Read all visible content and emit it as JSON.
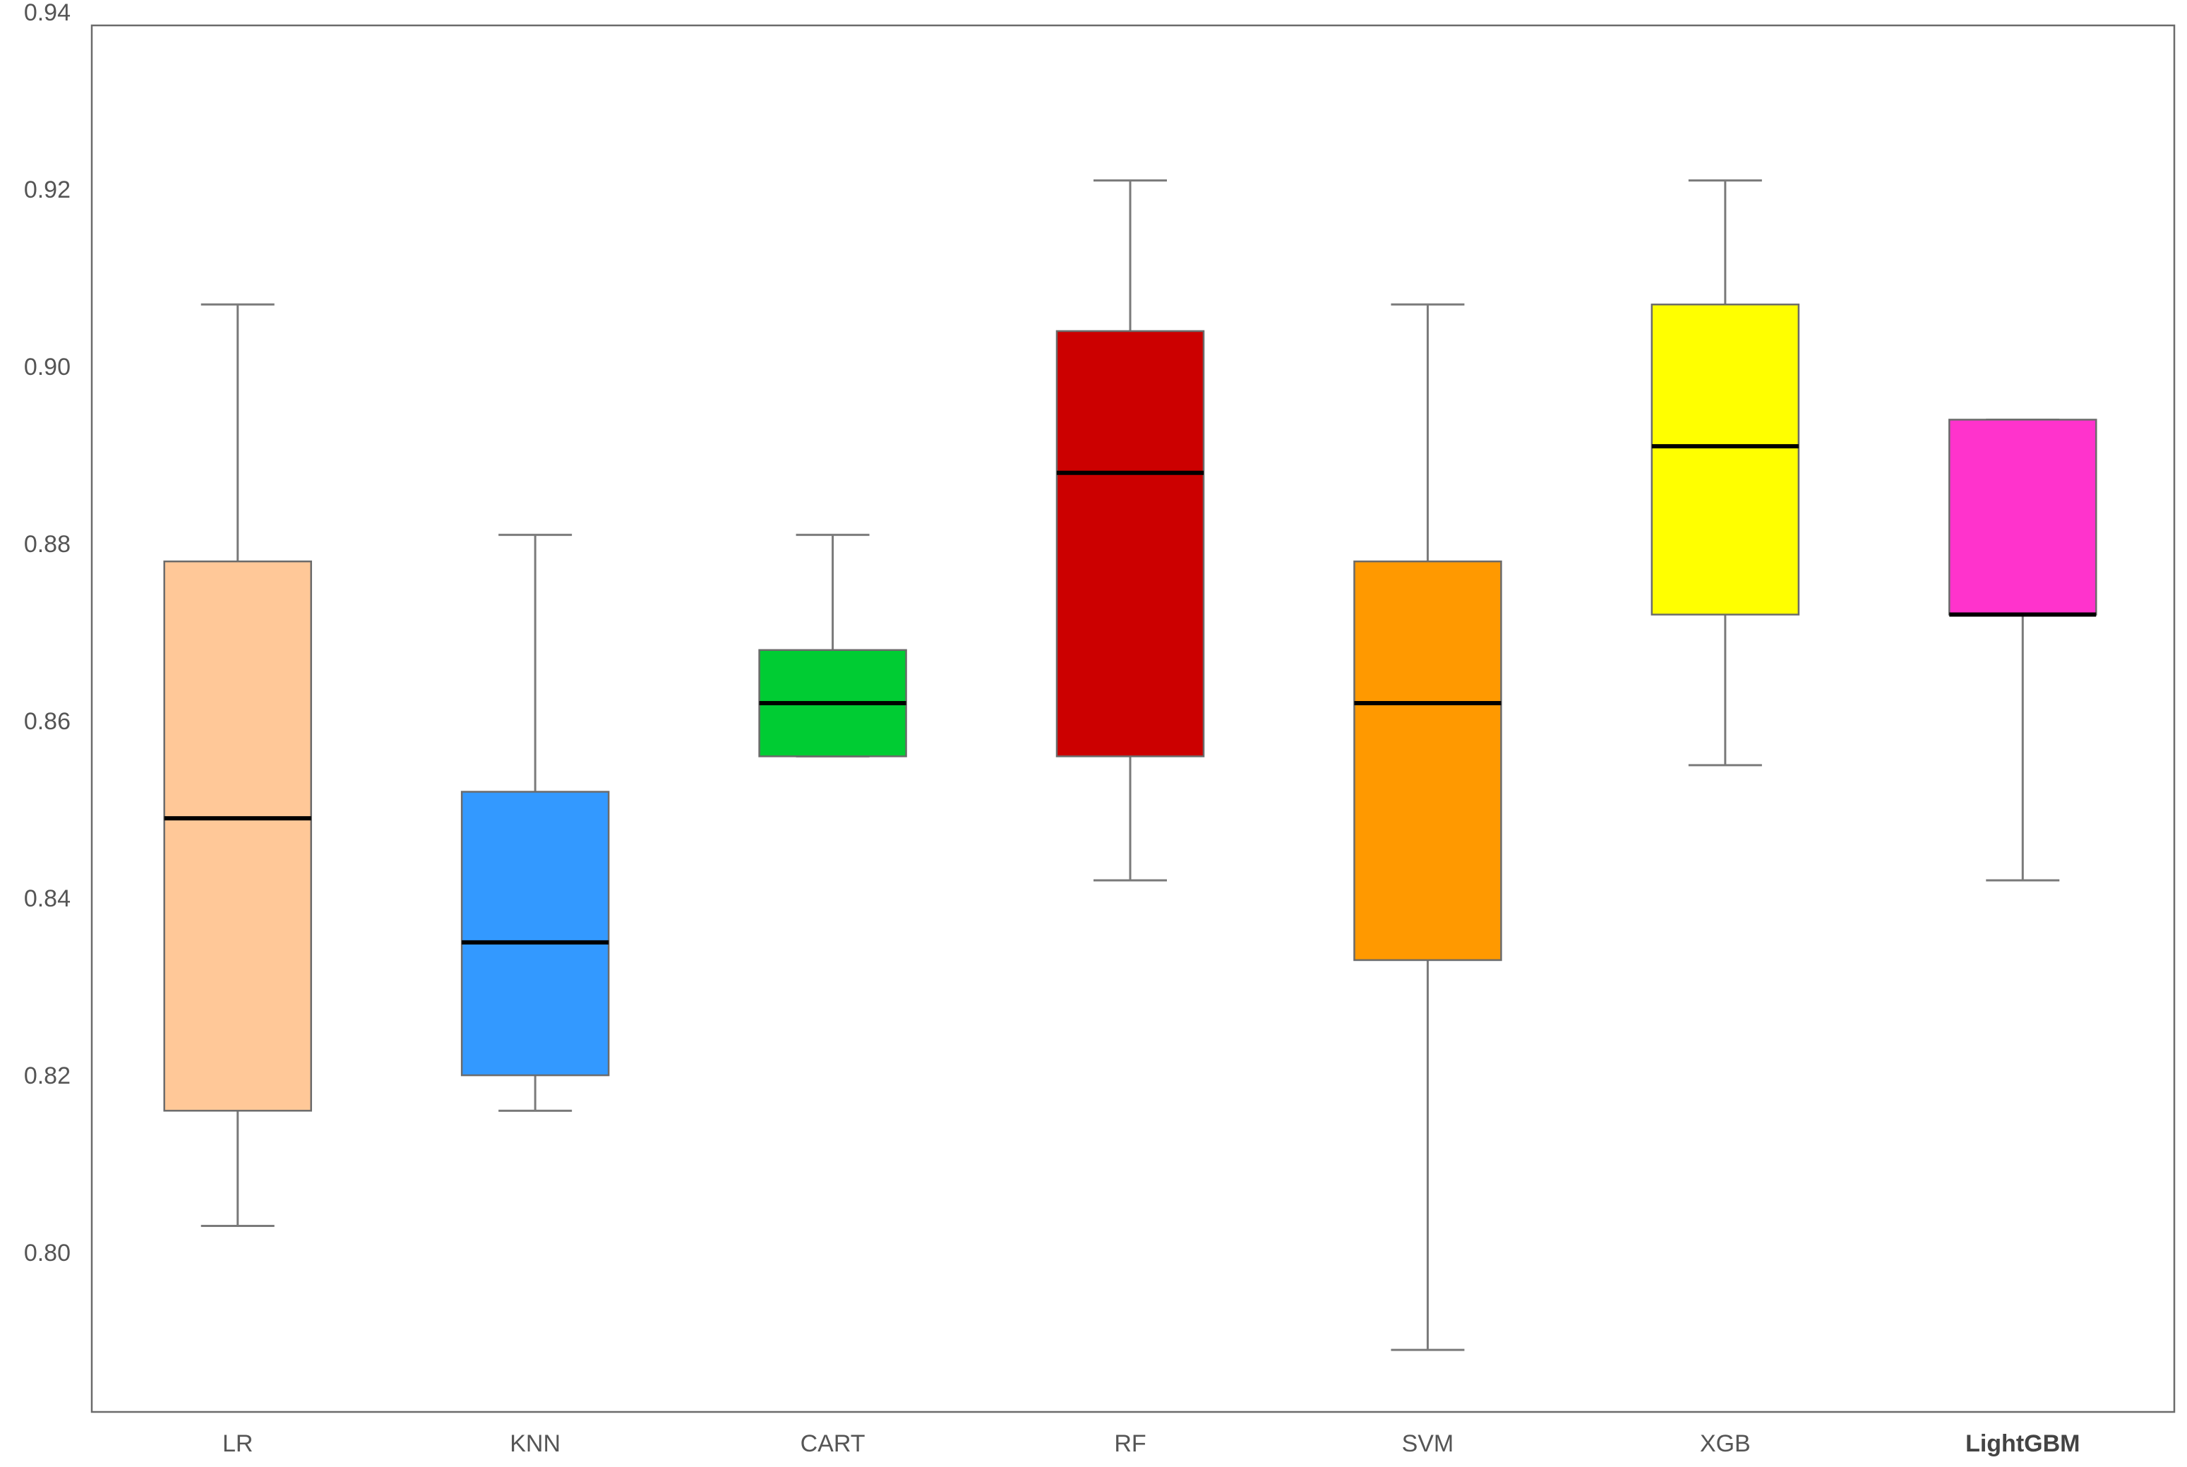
{
  "chart_data": {
    "type": "box",
    "title": "",
    "xlabel": "",
    "ylabel": "",
    "ylim": [
      0.782,
      0.9385
    ],
    "yticks": [
      "0.94",
      "0.92",
      "0.90",
      "0.88",
      "0.86",
      "0.84",
      "0.82",
      "0.80"
    ],
    "ytick_values": [
      0.94,
      0.92,
      0.9,
      0.88,
      0.86,
      0.84,
      0.82,
      0.8
    ],
    "grid": false,
    "series": [
      {
        "label": "LR",
        "whisker_low": 0.803,
        "q1": 0.816,
        "median": 0.849,
        "q3": 0.878,
        "whisker_high": 0.907,
        "color": "#FFC898",
        "label_bold": false
      },
      {
        "label": "KNN",
        "whisker_low": 0.816,
        "q1": 0.82,
        "median": 0.835,
        "q3": 0.852,
        "whisker_high": 0.881,
        "color": "#3399FF",
        "label_bold": false
      },
      {
        "label": "CART",
        "whisker_low": 0.856,
        "q1": 0.856,
        "median": 0.862,
        "q3": 0.868,
        "whisker_high": 0.881,
        "color": "#00CC33",
        "label_bold": false
      },
      {
        "label": "RF",
        "whisker_low": 0.842,
        "q1": 0.856,
        "median": 0.888,
        "q3": 0.904,
        "whisker_high": 0.921,
        "color": "#CC0000",
        "label_bold": false
      },
      {
        "label": "SVM",
        "whisker_low": 0.789,
        "q1": 0.833,
        "median": 0.862,
        "q3": 0.878,
        "whisker_high": 0.907,
        "color": "#FF9900",
        "label_bold": false
      },
      {
        "label": "XGB",
        "whisker_low": 0.855,
        "q1": 0.872,
        "median": 0.891,
        "q3": 0.907,
        "whisker_high": 0.921,
        "color": "#FFFF00",
        "label_bold": false
      },
      {
        "label": "LightGBM",
        "whisker_low": 0.842,
        "q1": 0.872,
        "median": 0.872,
        "q3": 0.894,
        "whisker_high": 0.894,
        "color": "#FF33CC",
        "label_bold": true
      }
    ]
  }
}
